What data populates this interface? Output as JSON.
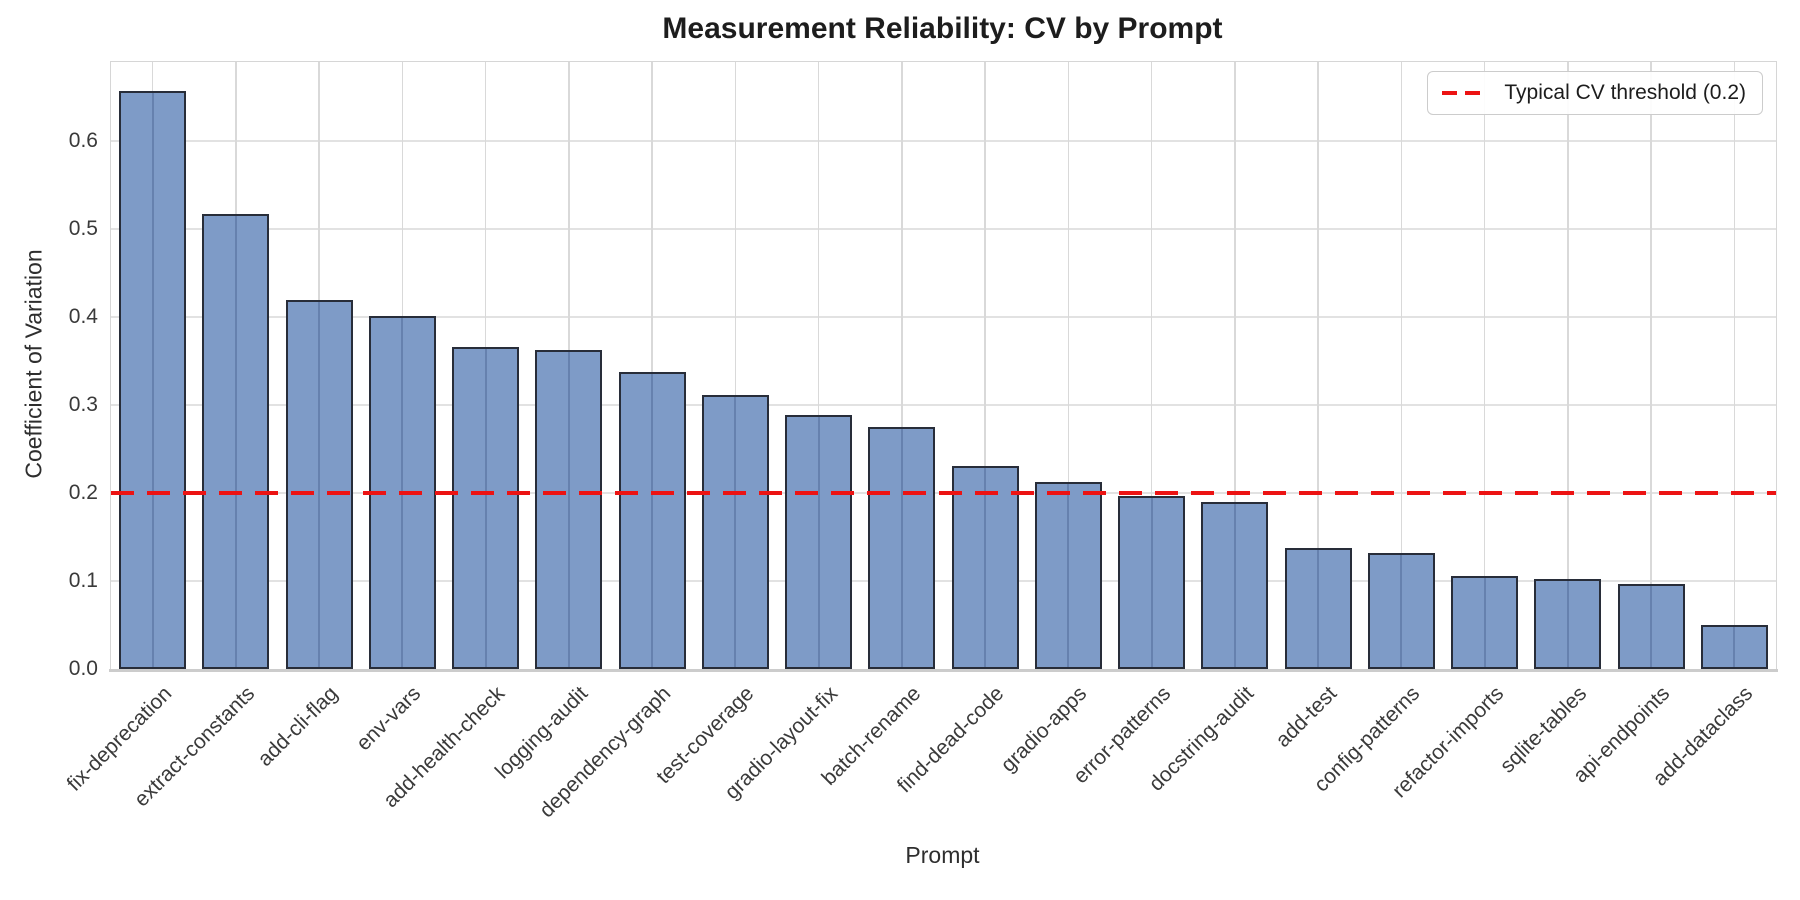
{
  "chart_data": {
    "type": "bar",
    "title": "Measurement Reliability: CV by Prompt",
    "xlabel": "Prompt",
    "ylabel": "Coefficient of Variation",
    "categories": [
      "fix-deprecation",
      "extract-constants",
      "add-cli-flag",
      "env-vars",
      "add-health-check",
      "logging-audit",
      "dependency-graph",
      "test-coverage",
      "gradio-layout-fix",
      "batch-rename",
      "find-dead-code",
      "gradio-apps",
      "error-patterns",
      "docstring-audit",
      "add-test",
      "config-patterns",
      "refactor-imports",
      "sqlite-tables",
      "api-endpoints",
      "add-dataclass"
    ],
    "values": [
      0.657,
      0.517,
      0.419,
      0.401,
      0.366,
      0.363,
      0.338,
      0.311,
      0.289,
      0.275,
      0.231,
      0.213,
      0.197,
      0.19,
      0.138,
      0.132,
      0.106,
      0.102,
      0.097,
      0.05
    ],
    "ylim": [
      0,
      0.69
    ],
    "yticks": [
      0.0,
      0.1,
      0.2,
      0.3,
      0.4,
      0.5,
      0.6
    ],
    "grid": "on",
    "threshold_value": 0.2,
    "legend_label": "Typical CV threshold (0.2)",
    "legend_position": "upper right",
    "colors": {
      "bar_fill": "#7e9bc7",
      "bar_edge": "#282d39",
      "threshold": "#ec1313",
      "gridline": "#dcdcdc",
      "spine": "#d6d6d6",
      "text": "#3a3a3a"
    }
  }
}
